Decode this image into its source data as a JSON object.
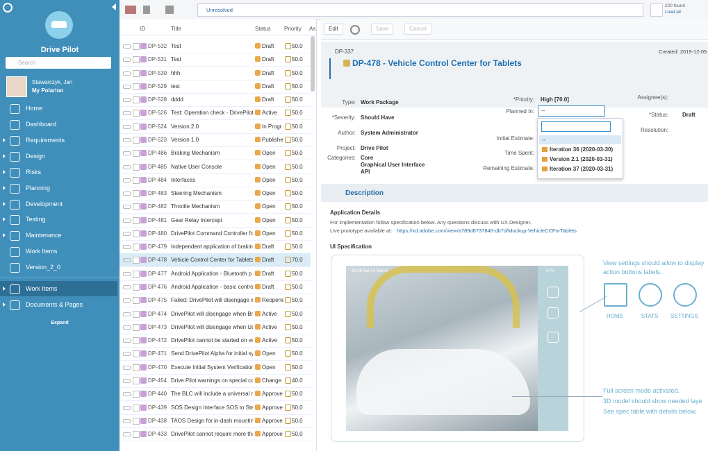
{
  "sidebar": {
    "project": "Drive Pilot",
    "search": "Search",
    "user_name": "Stawarczyk, Jan",
    "user_link": "My Polarion",
    "nav": [
      "Home",
      "Dashboard",
      "Requirements",
      "Design",
      "Risks",
      "Planning",
      "Development",
      "Testing",
      "Maintenance",
      "Work Items",
      "Version_2_0"
    ],
    "bottom": [
      "Work Items",
      "Documents & Pages"
    ],
    "expand": "Expand"
  },
  "toolbar": {
    "query": "Unresolved",
    "found": "200 found",
    "load_all": "Load all"
  },
  "table": {
    "headers": [
      "ID",
      "Title",
      "Status",
      "Priority",
      "As"
    ],
    "rows": [
      [
        "DP-532",
        "Test",
        "Draft",
        "50.0"
      ],
      [
        "DP-531",
        "Test",
        "Draft",
        "50.0"
      ],
      [
        "DP-530",
        "hhh",
        "Draft",
        "50.0"
      ],
      [
        "DP-529",
        "test",
        "Draft",
        "50.0"
      ],
      [
        "DP-528",
        "dddd",
        "Draft",
        "50.0"
      ],
      [
        "DP-526",
        "Test: Operation check - DrivePilot s",
        "Active",
        "50.0"
      ],
      [
        "DP-524",
        "Version 2.0",
        "In Progr",
        "50.0"
      ],
      [
        "DP-523",
        "Version 1.0",
        "Publishe",
        "50.0"
      ],
      [
        "DP-486",
        "Braking Mechanism",
        "Open",
        "50.0"
      ],
      [
        "DP-485",
        "Native User Console",
        "Open",
        "50.0"
      ],
      [
        "DP-484",
        "Interfaces",
        "Open",
        "50.0"
      ],
      [
        "DP-483",
        "Steering Mechanism",
        "Open",
        "50.0"
      ],
      [
        "DP-482",
        "Throttle Mechanism",
        "Open",
        "50.0"
      ],
      [
        "DP-481",
        "Gear Relay Intercept",
        "Open",
        "50.0"
      ],
      [
        "DP-480",
        "DrivePilot Command Controller fo",
        "Open",
        "50.0"
      ],
      [
        "DP-479",
        "Independent application of brakin",
        "Draft",
        "50.0"
      ],
      [
        "DP-478",
        "Vehicle Control Center for Tablets",
        "Draft",
        "70.0"
      ],
      [
        "DP-477",
        "Android Application - Bluetooth p",
        "Draft",
        "50.0"
      ],
      [
        "DP-476",
        "Android Application - basic contro",
        "Draft",
        "50.0"
      ],
      [
        "DP-475",
        "Failed: DrivePilot will disengage w",
        "Reopene",
        "50.0"
      ],
      [
        "DP-474",
        "DrivePilot will disengage when Bra",
        "Active",
        "50.0"
      ],
      [
        "DP-473",
        "DrivePilot will disengage when Use",
        "Active",
        "50.0"
      ],
      [
        "DP-472",
        "DrivePilot cannot be started on vel",
        "Active",
        "50.0"
      ],
      [
        "DP-471",
        "Send DrivePilot Alpha for initial sy",
        "Open",
        "50.0"
      ],
      [
        "DP-470",
        "Execute Initial System Verification",
        "Open",
        "50.0"
      ],
      [
        "DP-454",
        "Drive Pilot warnings on special cor",
        "Change",
        "40.0"
      ],
      [
        "DP-440",
        "The BLC will include a universal mo",
        "Approve",
        "50.0"
      ],
      [
        "DP-439",
        "SOS Design Interface SOS to Steer",
        "Approve",
        "50.0"
      ],
      [
        "DP-438",
        "TAOS Design for in-dash mounting",
        "Approve",
        "50.0"
      ],
      [
        "DP-433",
        "DrivePilot cannot require more tha",
        "Approve",
        "50.0"
      ]
    ]
  },
  "detail": {
    "actions": [
      "Edit",
      "Save",
      "Cancel"
    ],
    "parent": "DP-337",
    "created": "Created: 2019-12-05",
    "title": "DP-478 - Vehicle Control Center for Tablets",
    "left": [
      {
        "label": "Type:",
        "value": "Work Package"
      },
      {
        "label": "*Severity:",
        "value": "Should Have"
      },
      {
        "label": "Author:",
        "value": "System Administrator"
      },
      {
        "label": "Project:",
        "value": "Drive Pilot"
      },
      {
        "label": "Categories:",
        "value": [
          "Core",
          "Graphical User Interface",
          "API"
        ]
      }
    ],
    "middle": [
      {
        "label": "*Priority:",
        "value": "High [70.0]"
      },
      {
        "label": "Planned In:",
        "value": "--"
      },
      {
        "label": "Initial Estimate:"
      },
      {
        "label": "Time Spent:"
      },
      {
        "label": "Remaining Estimate:"
      }
    ],
    "right": [
      {
        "label": "Assignee(s):"
      },
      {
        "label": "*Status:",
        "value": "Draft"
      },
      {
        "label": "Resolution:"
      }
    ],
    "options": [
      "--",
      "Iteration 36 (2020-03-30)",
      "Version 2.1 (2020-03-31)",
      "Iteration 37 (2020-03-31)"
    ],
    "description": {
      "heading": "Description",
      "app_details": "Application Details",
      "text": "For implementation follow specification below. Any questions discuss with UX Designer.",
      "prototype_label": "Live prototype available at:",
      "link": "https://xd.adobe.com/view/a789d8737846-db7d/Mockup-VehicleCCForTablets",
      "ui_spec": "UI Specification",
      "image": {
        "status_time": "20:38  Sat 14 March",
        "battery": "57%",
        "note1": "View settings should allow to display action buttons labels.",
        "icons": [
          "HOME",
          "STATS",
          "SETTINGS"
        ],
        "note2": [
          "Full screen mode activated.",
          "3D model should show needed laye",
          "See spec table with details below."
        ]
      }
    }
  }
}
